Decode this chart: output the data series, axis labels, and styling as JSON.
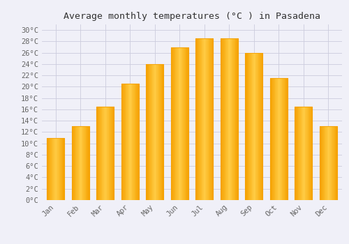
{
  "title": "Average monthly temperatures (°C ) in Pasadena",
  "months": [
    "Jan",
    "Feb",
    "Mar",
    "Apr",
    "May",
    "Jun",
    "Jul",
    "Aug",
    "Sep",
    "Oct",
    "Nov",
    "Dec"
  ],
  "values": [
    11,
    13,
    16.5,
    20.5,
    24,
    27,
    28.5,
    28.5,
    26,
    21.5,
    16.5,
    13
  ],
  "bar_color_center": "#FFCC44",
  "bar_color_edge": "#F5A000",
  "ylim": [
    0,
    31
  ],
  "background_color": "#f0f0f8",
  "plot_bg_color": "#f0f0f8",
  "grid_color": "#ccccdd",
  "title_fontsize": 9.5,
  "tick_fontsize": 7.5,
  "tick_color": "#666666",
  "font_family": "monospace"
}
